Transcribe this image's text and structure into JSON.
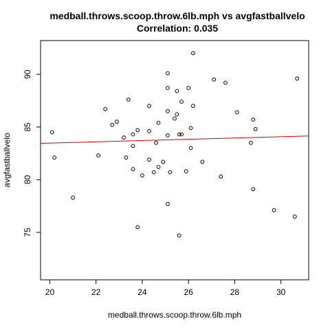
{
  "chart_data": {
    "type": "scatter",
    "title": "medball.throws.scoop.throw.6lb.mph vs avgfastballvelo",
    "subtitle": "Correlation: 0.035",
    "xlabel": "medball.throws.scoop.throw.6lb.mph",
    "ylabel": "avgfastballvelo",
    "xlim": [
      19.6,
      31.2
    ],
    "ylim": [
      70.5,
      93.2
    ],
    "xticks": [
      20,
      22,
      24,
      26,
      28,
      30
    ],
    "yticks": [
      75,
      80,
      85,
      90
    ],
    "grid": false,
    "legend": "none",
    "point_color": "#000000",
    "fit_line": {
      "color": "#cc0000",
      "x": [
        19.6,
        31.2
      ],
      "y": [
        83.45,
        84.15
      ]
    },
    "points": [
      {
        "x": 20.1,
        "y": 84.5
      },
      {
        "x": 20.2,
        "y": 82.1
      },
      {
        "x": 21.0,
        "y": 78.3
      },
      {
        "x": 22.1,
        "y": 82.3
      },
      {
        "x": 22.4,
        "y": 86.7
      },
      {
        "x": 22.7,
        "y": 85.2
      },
      {
        "x": 22.9,
        "y": 85.5
      },
      {
        "x": 23.2,
        "y": 84.0
      },
      {
        "x": 23.3,
        "y": 82.1
      },
      {
        "x": 23.4,
        "y": 87.6
      },
      {
        "x": 23.6,
        "y": 81.0
      },
      {
        "x": 23.6,
        "y": 83.2
      },
      {
        "x": 23.6,
        "y": 84.3
      },
      {
        "x": 23.8,
        "y": 84.7
      },
      {
        "x": 23.8,
        "y": 75.5
      },
      {
        "x": 24.0,
        "y": 80.4
      },
      {
        "x": 24.3,
        "y": 87.0
      },
      {
        "x": 24.3,
        "y": 84.6
      },
      {
        "x": 24.3,
        "y": 81.9
      },
      {
        "x": 24.5,
        "y": 80.7
      },
      {
        "x": 24.6,
        "y": 83.5
      },
      {
        "x": 24.7,
        "y": 81.2
      },
      {
        "x": 24.7,
        "y": 85.4
      },
      {
        "x": 24.9,
        "y": 81.7
      },
      {
        "x": 25.1,
        "y": 90.1
      },
      {
        "x": 25.1,
        "y": 88.7
      },
      {
        "x": 25.1,
        "y": 86.5
      },
      {
        "x": 25.1,
        "y": 84.2
      },
      {
        "x": 25.1,
        "y": 77.7
      },
      {
        "x": 25.2,
        "y": 80.7
      },
      {
        "x": 25.4,
        "y": 85.8
      },
      {
        "x": 25.5,
        "y": 88.4
      },
      {
        "x": 25.5,
        "y": 86.2
      },
      {
        "x": 25.6,
        "y": 84.3
      },
      {
        "x": 25.6,
        "y": 74.7
      },
      {
        "x": 25.7,
        "y": 87.4
      },
      {
        "x": 25.7,
        "y": 84.3
      },
      {
        "x": 25.9,
        "y": 80.8
      },
      {
        "x": 26.0,
        "y": 88.7
      },
      {
        "x": 26.1,
        "y": 84.9
      },
      {
        "x": 26.1,
        "y": 83.0
      },
      {
        "x": 26.2,
        "y": 92.0
      },
      {
        "x": 26.2,
        "y": 87.0
      },
      {
        "x": 26.6,
        "y": 81.7
      },
      {
        "x": 27.1,
        "y": 89.5
      },
      {
        "x": 27.4,
        "y": 80.3
      },
      {
        "x": 27.6,
        "y": 89.2
      },
      {
        "x": 28.1,
        "y": 86.4
      },
      {
        "x": 28.7,
        "y": 83.5
      },
      {
        "x": 28.8,
        "y": 85.7
      },
      {
        "x": 28.8,
        "y": 79.1
      },
      {
        "x": 28.9,
        "y": 84.8
      },
      {
        "x": 29.7,
        "y": 77.1
      },
      {
        "x": 30.6,
        "y": 76.5
      },
      {
        "x": 30.7,
        "y": 89.6
      }
    ]
  }
}
